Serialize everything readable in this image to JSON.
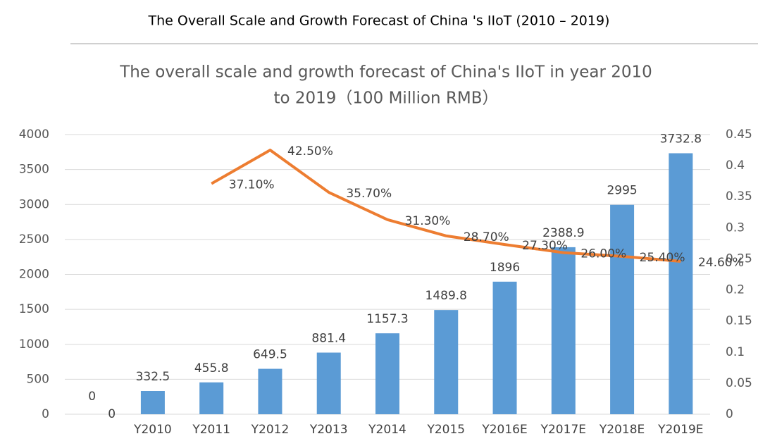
{
  "header": {
    "title": "The Overall Scale and Growth Forecast of China 's IIoT (2010 – 2019)"
  },
  "chart_data": {
    "type": "bar-line",
    "title": [
      "The overall scale and growth forecast of China's IIoT in year 2010",
      "to 2019（100 Million RMB）"
    ],
    "categories": [
      null,
      "Y2010",
      "Y2011",
      "Y2012",
      "Y2013",
      "Y2014",
      "Y2015",
      "Y2016E",
      "Y2017E",
      "Y2018E",
      "Y2019E"
    ],
    "series": [
      {
        "type": "bar",
        "color": "#5b9bd5",
        "values": [
          0,
          332.5,
          455.8,
          649.5,
          881.4,
          1157.3,
          1489.8,
          1896,
          2388.9,
          2995,
          3732.8
        ]
      },
      {
        "type": "line",
        "axis": "y2",
        "color": "#ed7d31",
        "values": [
          0,
          null,
          0.371,
          0.425,
          0.357,
          0.313,
          0.287,
          0.273,
          0.26,
          0.254,
          0.246
        ],
        "value_labels": [
          "0",
          null,
          "37.10%",
          "42.50%",
          "35.70%",
          "31.30%",
          "28.70%",
          "27.30%",
          "26.00%",
          "25.40%",
          "24.60%"
        ]
      }
    ],
    "ylim": [
      0,
      4000
    ],
    "yticks": [
      0,
      500,
      1000,
      1500,
      2000,
      2500,
      3000,
      3500,
      4000
    ],
    "y2lim": [
      0,
      0.45
    ],
    "y2ticks": [
      0,
      0.05,
      0.1,
      0.15,
      0.2,
      0.25,
      0.3,
      0.35,
      0.4,
      0.45
    ]
  }
}
